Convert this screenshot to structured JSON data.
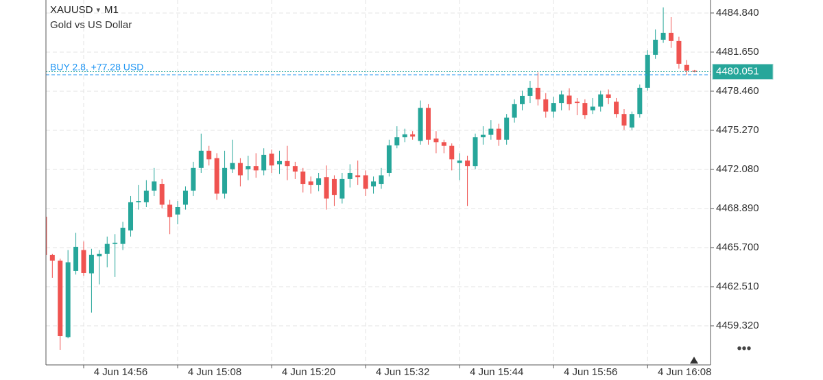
{
  "chart_data": {
    "type": "candlestick",
    "symbol": "XAUUSD",
    "timeframe": "M1",
    "subtitle": "Gold vs US Dollar",
    "x": [
      "4 Jun 14:51",
      "4 Jun 14:52",
      "4 Jun 14:53",
      "4 Jun 14:54",
      "4 Jun 14:55",
      "4 Jun 14:56",
      "4 Jun 14:57",
      "4 Jun 14:58",
      "4 Jun 14:59",
      "4 Jun 15:00",
      "4 Jun 15:01",
      "4 Jun 15:02",
      "4 Jun 15:03",
      "4 Jun 15:04",
      "4 Jun 15:05",
      "4 Jun 15:06",
      "4 Jun 15:07",
      "4 Jun 15:08",
      "4 Jun 15:09",
      "4 Jun 15:10",
      "4 Jun 15:11",
      "4 Jun 15:12",
      "4 Jun 15:13",
      "4 Jun 15:14",
      "4 Jun 15:15",
      "4 Jun 15:16",
      "4 Jun 15:17",
      "4 Jun 15:18",
      "4 Jun 15:19",
      "4 Jun 15:20",
      "4 Jun 15:21",
      "4 Jun 15:22",
      "4 Jun 15:23",
      "4 Jun 15:24",
      "4 Jun 15:25",
      "4 Jun 15:26",
      "4 Jun 15:27",
      "4 Jun 15:28",
      "4 Jun 15:29",
      "4 Jun 15:30",
      "4 Jun 15:31",
      "4 Jun 15:32",
      "4 Jun 15:33",
      "4 Jun 15:34",
      "4 Jun 15:35",
      "4 Jun 15:36",
      "4 Jun 15:37",
      "4 Jun 15:38",
      "4 Jun 15:39",
      "4 Jun 15:40",
      "4 Jun 15:41",
      "4 Jun 15:42",
      "4 Jun 15:43",
      "4 Jun 15:44",
      "4 Jun 15:45",
      "4 Jun 15:46",
      "4 Jun 15:47",
      "4 Jun 15:48",
      "4 Jun 15:49",
      "4 Jun 15:50",
      "4 Jun 15:51",
      "4 Jun 15:52",
      "4 Jun 15:53",
      "4 Jun 15:54",
      "4 Jun 15:55",
      "4 Jun 15:56",
      "4 Jun 15:57",
      "4 Jun 15:58",
      "4 Jun 15:59",
      "4 Jun 16:00",
      "4 Jun 16:01",
      "4 Jun 16:02",
      "4 Jun 16:03",
      "4 Jun 16:04",
      "4 Jun 16:05",
      "4 Jun 16:06",
      "4 Jun 16:07",
      "4 Jun 16:08",
      "4 Jun 16:09",
      "4 Jun 16:10",
      "4 Jun 16:11",
      "4 Jun 16:12",
      "4 Jun 16:13",
      "4 Jun 16:14"
    ],
    "open": [
      4468.22,
      4465.09,
      4464.64,
      4458.4,
      4463.8,
      4465.5,
      4463.6,
      4465.0,
      4465.2,
      4466.0,
      4466.0,
      4467.1,
      4469.4,
      4469.4,
      4470.35,
      4470.9,
      4469.2,
      4468.4,
      4469.2,
      4470.35,
      4472.2,
      4473.6,
      4473.0,
      4470.1,
      4472.1,
      4472.6,
      4472.1,
      4472.35,
      4472.0,
      4473.37,
      4472.5,
      4472.76,
      4472.35,
      4471.9,
      4471.1,
      4470.8,
      4471.45,
      4471.3,
      4469.7,
      4471.3,
      4471.6,
      4471.6,
      4470.7,
      4470.9,
      4471.8,
      4474.04,
      4474.7,
      4474.94,
      4474.4,
      4477.1,
      4474.6,
      4474.3,
      4474.0,
      4472.6,
      4472.8,
      4472.35,
      4474.7,
      4474.9,
      4475.4,
      4474.5,
      4476.3,
      4477.4,
      4478.07,
      4478.74,
      4477.8,
      4476.8,
      4477.5,
      4478.1,
      4477.6,
      4477.5,
      4476.9,
      4477.2,
      4478.2,
      4477.6,
      4476.6,
      4475.5,
      4476.6,
      4478.74,
      4481.43,
      4482.66,
      4483.22,
      4482.55,
      4480.6,
      4480.14
    ],
    "high": [
      4468.3,
      4465.2,
      4464.8,
      4465.5,
      4466.9,
      4466.2,
      4465.6,
      4465.5,
      4466.6,
      4466.8,
      4467.8,
      4469.9,
      4470.8,
      4471.2,
      4472.2,
      4471.3,
      4469.6,
      4469.5,
      4470.7,
      4472.7,
      4475.0,
      4474.0,
      4473.4,
      4473.6,
      4474.5,
      4473.0,
      4473.2,
      4473.4,
      4473.8,
      4473.7,
      4473.6,
      4474.0,
      4472.7,
      4472.2,
      4471.5,
      4471.8,
      4472.4,
      4471.6,
      4471.8,
      4472.5,
      4472.8,
      4472.0,
      4471.5,
      4472.2,
      4474.5,
      4475.6,
      4475.4,
      4475.2,
      4477.7,
      4477.4,
      4475.2,
      4474.5,
      4474.2,
      4473.4,
      4473.2,
      4475.0,
      4475.6,
      4476.1,
      4475.8,
      4476.6,
      4477.8,
      4478.5,
      4479.3,
      4480.0,
      4478.3,
      4478.0,
      4478.5,
      4478.7,
      4477.9,
      4477.8,
      4477.9,
      4478.5,
      4478.6,
      4477.9,
      4477.0,
      4476.8,
      4479.0,
      4481.8,
      4483.5,
      4485.3,
      4484.5,
      4482.9,
      4481.0,
      4480.2
    ],
    "low": [
      4465.0,
      4463.24,
      4457.36,
      4458.3,
      4463.5,
      4463.4,
      4460.4,
      4462.7,
      4464.1,
      4463.3,
      4465.5,
      4466.6,
      4468.8,
      4469.0,
      4469.9,
      4468.9,
      4466.8,
      4467.6,
      4468.8,
      4469.9,
      4471.8,
      4472.4,
      4469.6,
      4469.7,
      4471.8,
      4470.7,
      4471.2,
      4471.4,
      4471.6,
      4471.8,
      4471.7,
      4471.2,
      4471.3,
      4470.2,
      4470.1,
      4470.3,
      4468.8,
      4469.1,
      4469.3,
      4470.6,
      4470.8,
      4469.9,
      4470.1,
      4470.5,
      4471.5,
      4473.8,
      4474.3,
      4474.5,
      4474.1,
      4474.1,
      4473.4,
      4473.4,
      4472.0,
      4471.2,
      4469.1,
      4472.1,
      4474.1,
      4474.5,
      4474.0,
      4474.1,
      4475.9,
      4476.9,
      4477.5,
      4477.3,
      4476.3,
      4476.3,
      4476.9,
      4476.9,
      4476.5,
      4476.2,
      4476.6,
      4476.8,
      4477.4,
      4476.3,
      4475.3,
      4475.3,
      4476.3,
      4478.5,
      4481.1,
      4482.4,
      4482.0,
      4480.3,
      4479.8,
      4480.0
    ],
    "close": [
      4465.09,
      4464.64,
      4458.48,
      4464.5,
      4465.76,
      4463.63,
      4465.1,
      4465.2,
      4466.0,
      4466.1,
      4467.32,
      4469.4,
      4469.5,
      4470.35,
      4471.1,
      4469.2,
      4468.2,
      4469.0,
      4470.35,
      4472.2,
      4473.6,
      4472.9,
      4470.1,
      4472.2,
      4472.6,
      4471.6,
      4472.35,
      4472.0,
      4473.26,
      4472.4,
      4472.76,
      4472.35,
      4471.9,
      4470.9,
      4470.8,
      4471.35,
      4469.7,
      4470.0,
      4471.3,
      4471.8,
      4471.45,
      4470.5,
      4471.1,
      4471.6,
      4474.04,
      4474.7,
      4474.94,
      4474.76,
      4477.1,
      4474.5,
      4474.3,
      4474.0,
      4472.9,
      4472.8,
      4472.35,
      4474.7,
      4474.9,
      4475.4,
      4474.5,
      4476.3,
      4477.4,
      4478.07,
      4478.74,
      4477.8,
      4476.8,
      4477.5,
      4478.2,
      4477.4,
      4477.5,
      4476.5,
      4477.2,
      4478.2,
      4477.9,
      4476.6,
      4475.66,
      4476.6,
      4478.74,
      4481.43,
      4482.66,
      4483.22,
      4482.55,
      4480.7,
      4480.14,
      4480.051
    ],
    "up_color": "#26a69a",
    "down_color": "#ef5350",
    "xticks": [
      "4 Jun 14:56",
      "4 Jun 15:08",
      "4 Jun 15:20",
      "4 Jun 15:32",
      "4 Jun 15:44",
      "4 Jun 15:56",
      "4 Jun 16:08"
    ],
    "ylim": [
      4456.13,
      4485.9
    ],
    "yticks": [
      {
        "value": 4459.32,
        "label": "4459.320"
      },
      {
        "value": 4462.51,
        "label": "4462.510"
      },
      {
        "value": 4465.7,
        "label": "4465.700"
      },
      {
        "value": 4468.89,
        "label": "4468.890"
      },
      {
        "value": 4472.08,
        "label": "4472.080"
      },
      {
        "value": 4475.27,
        "label": "4475.270"
      },
      {
        "value": 4478.46,
        "label": "4478.460"
      },
      {
        "value": 4481.65,
        "label": "4481.650"
      },
      {
        "value": 4484.84,
        "label": "4484.840"
      }
    ],
    "grid": true,
    "last_price": {
      "value": 4480.051,
      "label": "4480.051"
    },
    "position": {
      "label": "BUY 2.8, +77.28 USD",
      "price": 4479.8
    }
  }
}
